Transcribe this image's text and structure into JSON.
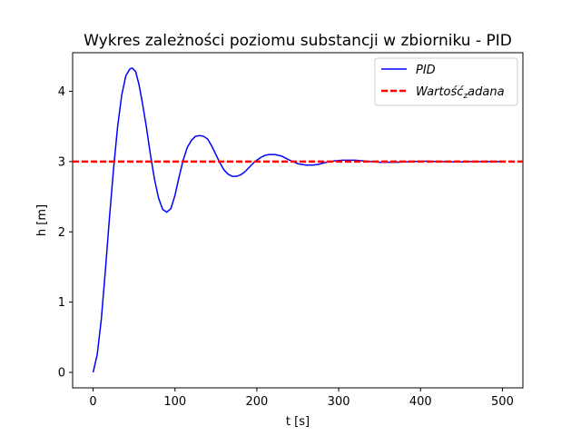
{
  "chart_data": {
    "type": "line",
    "title": "Wykres zależności poziomu substancji w zbiorniku - PID",
    "xlabel": "t [s]",
    "ylabel": "h [m]",
    "xlim": [
      -25,
      525
    ],
    "ylim": [
      -0.22,
      4.55
    ],
    "xticks": [
      0,
      100,
      200,
      300,
      400,
      500
    ],
    "yticks": [
      0,
      1,
      2,
      3,
      4
    ],
    "grid": false,
    "legend_position": "top-right",
    "series": [
      {
        "name": "PID",
        "color": "#0000ff",
        "style": "solid",
        "x": [
          0,
          5,
          10,
          15,
          20,
          25,
          30,
          35,
          40,
          45,
          48,
          52,
          56,
          60,
          65,
          70,
          75,
          80,
          85,
          90,
          95,
          100,
          105,
          110,
          115,
          120,
          125,
          130,
          135,
          140,
          145,
          150,
          155,
          160,
          165,
          170,
          175,
          180,
          185,
          190,
          195,
          200,
          205,
          210,
          215,
          222,
          230,
          240,
          250,
          260,
          268,
          275,
          285,
          295,
          305,
          312,
          320,
          330,
          340,
          350,
          360,
          370,
          380,
          390,
          400,
          410,
          420,
          430,
          440,
          450,
          460,
          470,
          480,
          490,
          497
        ],
        "y": [
          0.0,
          0.25,
          0.75,
          1.45,
          2.2,
          2.9,
          3.5,
          3.95,
          4.22,
          4.32,
          4.33,
          4.28,
          4.1,
          3.85,
          3.5,
          3.1,
          2.75,
          2.48,
          2.32,
          2.28,
          2.33,
          2.52,
          2.78,
          3.02,
          3.2,
          3.3,
          3.36,
          3.37,
          3.36,
          3.32,
          3.22,
          3.1,
          2.98,
          2.88,
          2.82,
          2.79,
          2.79,
          2.81,
          2.85,
          2.91,
          2.97,
          3.02,
          3.06,
          3.09,
          3.1,
          3.1,
          3.08,
          3.02,
          2.97,
          2.95,
          2.95,
          2.96,
          2.99,
          3.01,
          3.02,
          3.02,
          3.02,
          3.01,
          3.0,
          2.99,
          2.99,
          2.99,
          2.995,
          3.0,
          3.005,
          3.005,
          3.0,
          3.0,
          2.995,
          2.995,
          3.0,
          3.0,
          3.0,
          3.0,
          3.0
        ]
      },
      {
        "name": "Wartość zadana",
        "color": "#ff0000",
        "style": "dashed",
        "x": [
          -25,
          525
        ],
        "y": [
          3.0,
          3.0
        ]
      }
    ]
  },
  "legend": {
    "label_1": "PID",
    "label_2": "Wartość",
    "label_2_sub": "z",
    "label_2_rest": "adana"
  }
}
